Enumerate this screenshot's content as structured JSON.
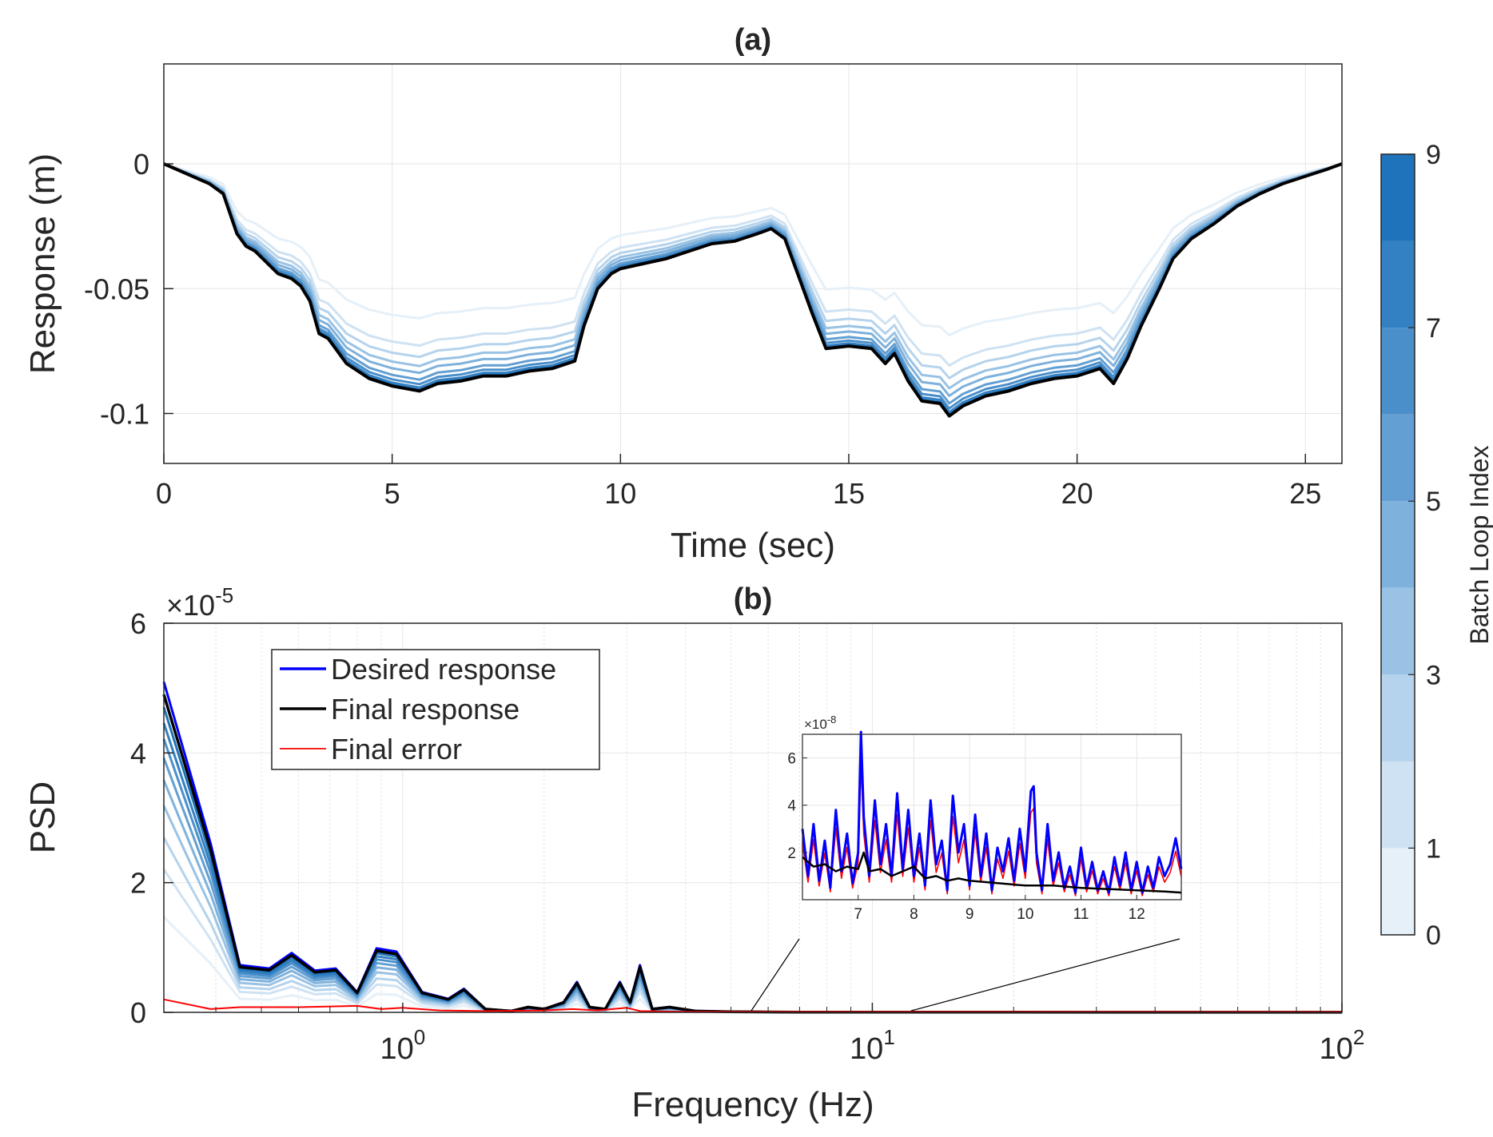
{
  "colors": {
    "final": "#000000",
    "desired": "#0000ff",
    "error": "#ff0000",
    "grid": "#e6e6e6",
    "colormap": [
      "#e6f0f8",
      "#cfe2f3",
      "#b5d3ec",
      "#99c2e4",
      "#7eb1db",
      "#639fd2",
      "#4b8fca",
      "#3380c2",
      "#1f73ba",
      "#0b66b2"
    ]
  },
  "chart_data": [
    {
      "id": "a",
      "type": "line",
      "title": "(a)",
      "xlabel": "Time (sec)",
      "ylabel": "Response (m)",
      "xlim": [
        0,
        25.8
      ],
      "ylim": [
        -0.12,
        0.04
      ],
      "xticks": [
        0,
        5,
        10,
        15,
        20,
        25
      ],
      "xtick_labels": [
        "0",
        "5",
        "10",
        "15",
        "20",
        "25"
      ],
      "yticks": [
        0,
        -0.05,
        -0.1
      ],
      "ytick_labels": [
        "0",
        "-0.05",
        "-0.1"
      ],
      "grid": true,
      "final_response": {
        "x": [
          0,
          0.5,
          1.0,
          1.3,
          1.6,
          1.8,
          2.0,
          2.5,
          2.8,
          3.0,
          3.2,
          3.4,
          3.6,
          4.0,
          4.5,
          5.0,
          5.3,
          5.6,
          6.0,
          6.5,
          7.0,
          7.5,
          8.0,
          8.5,
          9.0,
          9.2,
          9.5,
          9.8,
          10.0,
          10.5,
          11.0,
          11.5,
          12.0,
          12.5,
          13.0,
          13.3,
          13.6,
          13.9,
          14.2,
          14.5,
          15.0,
          15.5,
          15.8,
          16.0,
          16.3,
          16.6,
          17.0,
          17.2,
          17.5,
          18.0,
          18.5,
          19.0,
          19.5,
          20.0,
          20.5,
          20.8,
          21.1,
          21.4,
          21.8,
          22.1,
          22.5,
          23.0,
          23.5,
          24.0,
          24.5,
          25.0,
          25.5,
          25.8
        ],
        "y": [
          0,
          -0.004,
          -0.008,
          -0.012,
          -0.028,
          -0.033,
          -0.035,
          -0.044,
          -0.046,
          -0.049,
          -0.055,
          -0.068,
          -0.07,
          -0.08,
          -0.086,
          -0.089,
          -0.09,
          -0.091,
          -0.088,
          -0.087,
          -0.085,
          -0.085,
          -0.083,
          -0.082,
          -0.079,
          -0.065,
          -0.05,
          -0.044,
          -0.042,
          -0.04,
          -0.038,
          -0.035,
          -0.032,
          -0.031,
          -0.028,
          -0.026,
          -0.03,
          -0.045,
          -0.06,
          -0.074,
          -0.073,
          -0.074,
          -0.08,
          -0.076,
          -0.087,
          -0.095,
          -0.096,
          -0.101,
          -0.097,
          -0.093,
          -0.091,
          -0.088,
          -0.086,
          -0.085,
          -0.082,
          -0.088,
          -0.078,
          -0.065,
          -0.05,
          -0.038,
          -0.03,
          -0.024,
          -0.017,
          -0.012,
          -0.008,
          -0.005,
          -0.002,
          0
        ]
      },
      "series": [
        {
          "name": "loop 0",
          "scale": 0.68
        },
        {
          "name": "loop 1",
          "scale": 0.8
        },
        {
          "name": "loop 2",
          "scale": 0.85
        },
        {
          "name": "loop 3",
          "scale": 0.89
        },
        {
          "name": "loop 4",
          "scale": 0.92
        },
        {
          "name": "loop 5",
          "scale": 0.95
        },
        {
          "name": "loop 6",
          "scale": 0.97
        },
        {
          "name": "loop 7",
          "scale": 0.985
        },
        {
          "name": "loop 8",
          "scale": 0.995
        }
      ]
    },
    {
      "id": "b",
      "type": "line",
      "title": "(b)",
      "xlabel": "Frequency (Hz)",
      "ylabel": "PSD",
      "xscale": "log",
      "xlim": [
        0.31,
        100
      ],
      "ylim": [
        0,
        6e-05
      ],
      "exponent_label": "×10",
      "exponent": "-5",
      "xticks": [
        1,
        10,
        100
      ],
      "xtick_base": "10",
      "xtick_exponents": [
        "0",
        "1",
        "2"
      ],
      "yticks": [
        0,
        2e-05,
        4e-05,
        6e-05
      ],
      "ytick_labels": [
        "0",
        "2",
        "4",
        "6"
      ],
      "grid": true,
      "legend": {
        "position": "top-left",
        "entries": [
          "Desired response",
          "Final response",
          "Final error"
        ]
      },
      "final_response": {
        "x": [
          0.31,
          0.39,
          0.45,
          0.52,
          0.58,
          0.65,
          0.72,
          0.8,
          0.88,
          0.97,
          1.1,
          1.25,
          1.35,
          1.5,
          1.7,
          1.85,
          2.0,
          2.2,
          2.35,
          2.5,
          2.7,
          2.9,
          3.05,
          3.2,
          3.4,
          3.7,
          4.2,
          5,
          7,
          10,
          20,
          50,
          100
        ],
        "y": [
          4.9e-05,
          2.5e-05,
          7e-06,
          6.5e-06,
          8.8e-06,
          6.2e-06,
          6.5e-06,
          3e-06,
          9.5e-06,
          9e-06,
          3e-06,
          2e-06,
          3.5e-06,
          5e-07,
          2e-07,
          8e-07,
          5e-07,
          1.5e-06,
          4.5e-06,
          8e-07,
          5e-07,
          4.5e-06,
          1.5e-06,
          7e-06,
          5e-07,
          8e-07,
          2e-07,
          1e-07,
          4e-08,
          3e-08,
          2e-08,
          1e-08,
          1e-08
        ]
      },
      "desired_scale": 1.04,
      "final_error": {
        "x": [
          0.31,
          0.39,
          0.45,
          0.6,
          0.8,
          0.9,
          1.0,
          1.2,
          1.5,
          2.0,
          2.3,
          2.6,
          3.0,
          3.2,
          4.0,
          6,
          10,
          30,
          100
        ],
        "y": [
          2e-06,
          5e-07,
          8e-07,
          8e-07,
          1e-06,
          5e-07,
          7e-07,
          3e-07,
          2e-07,
          3e-07,
          5e-07,
          3e-07,
          7e-07,
          2e-07,
          1e-07,
          8e-08,
          8e-08,
          8e-08,
          8e-08
        ]
      },
      "series_scales": [
        0.3,
        0.45,
        0.55,
        0.65,
        0.73,
        0.8,
        0.86,
        0.91,
        0.96
      ],
      "inset": {
        "xlim": [
          6,
          12.8
        ],
        "ylim": [
          0,
          7e-08
        ],
        "exponent_label": "×10",
        "exponent": "-8",
        "xticks": [
          7,
          8,
          9,
          10,
          11,
          12
        ],
        "xtick_labels": [
          "7",
          "8",
          "9",
          "10",
          "11",
          "12"
        ],
        "yticks": [
          2e-08,
          4e-08,
          6e-08
        ],
        "ytick_labels": [
          "2",
          "4",
          "6"
        ],
        "desired": {
          "x": [
            6.0,
            6.1,
            6.2,
            6.3,
            6.4,
            6.5,
            6.6,
            6.7,
            6.8,
            6.9,
            7.0,
            7.05,
            7.1,
            7.2,
            7.3,
            7.4,
            7.5,
            7.6,
            7.7,
            7.8,
            7.9,
            8.0,
            8.1,
            8.2,
            8.3,
            8.4,
            8.5,
            8.6,
            8.7,
            8.8,
            8.9,
            9.0,
            9.1,
            9.2,
            9.3,
            9.4,
            9.5,
            9.6,
            9.7,
            9.8,
            9.9,
            10.0,
            10.1,
            10.15,
            10.2,
            10.3,
            10.4,
            10.5,
            10.6,
            10.7,
            10.8,
            10.9,
            11.0,
            11.1,
            11.2,
            11.3,
            11.4,
            11.5,
            11.6,
            11.7,
            11.8,
            11.9,
            12.0,
            12.1,
            12.2,
            12.3,
            12.4,
            12.5,
            12.6,
            12.7,
            12.8
          ],
          "y": [
            3e-08,
            1e-08,
            3.2e-08,
            8e-09,
            2.5e-08,
            5e-09,
            3.8e-08,
            1.2e-08,
            2.8e-08,
            7e-09,
            2e-08,
            7.1e-08,
            3.5e-08,
            1e-08,
            4.2e-08,
            1.5e-08,
            3.2e-08,
            1e-08,
            4.5e-08,
            1.3e-08,
            3.8e-08,
            1e-08,
            2.8e-08,
            6e-09,
            4.2e-08,
            1.5e-08,
            2.5e-08,
            4e-09,
            4.4e-08,
            2e-08,
            3.2e-08,
            6e-09,
            3.6e-08,
            1e-08,
            2.8e-08,
            4e-09,
            2.2e-08,
            1.2e-08,
            2.6e-08,
            8e-09,
            3e-08,
            1.2e-08,
            4.6e-08,
            4.8e-08,
            2e-08,
            4e-09,
            3.2e-08,
            8e-09,
            2e-08,
            5e-09,
            1.4e-08,
            3e-09,
            2.2e-08,
            5e-09,
            1.6e-08,
            4e-09,
            1.2e-08,
            3e-09,
            1.8e-08,
            6e-09,
            2e-08,
            4e-09,
            1.6e-08,
            3e-09,
            1.4e-08,
            5e-09,
            1.8e-08,
            1e-08,
            1.5e-08,
            2.6e-08,
            1.3e-08
          ]
        },
        "final": {
          "x": [
            6.0,
            6.2,
            6.4,
            6.6,
            6.8,
            7.0,
            7.1,
            7.2,
            7.4,
            7.6,
            7.8,
            8.0,
            8.2,
            8.4,
            8.6,
            8.8,
            9.0,
            9.5,
            10.0,
            10.5,
            11.0,
            11.5,
            12.0,
            12.5,
            12.8
          ],
          "y": [
            1.8e-08,
            1.4e-08,
            1.5e-08,
            1.2e-08,
            1.4e-08,
            1.3e-08,
            2e-08,
            1.2e-08,
            1.3e-08,
            1e-08,
            1.2e-08,
            1.4e-08,
            9e-09,
            1e-08,
            8e-09,
            9e-09,
            8e-09,
            7e-09,
            6e-09,
            6e-09,
            5e-09,
            4.5e-09,
            4e-09,
            3.5e-09,
            3e-09
          ]
        }
      }
    }
  ],
  "colorbar": {
    "label": "Batch Loop Index",
    "ticks": [
      0,
      1,
      3,
      5,
      7,
      9
    ],
    "tick_labels": [
      "0",
      "1",
      "3",
      "5",
      "7",
      "9"
    ],
    "limits": [
      0,
      9
    ],
    "levels": 9
  }
}
